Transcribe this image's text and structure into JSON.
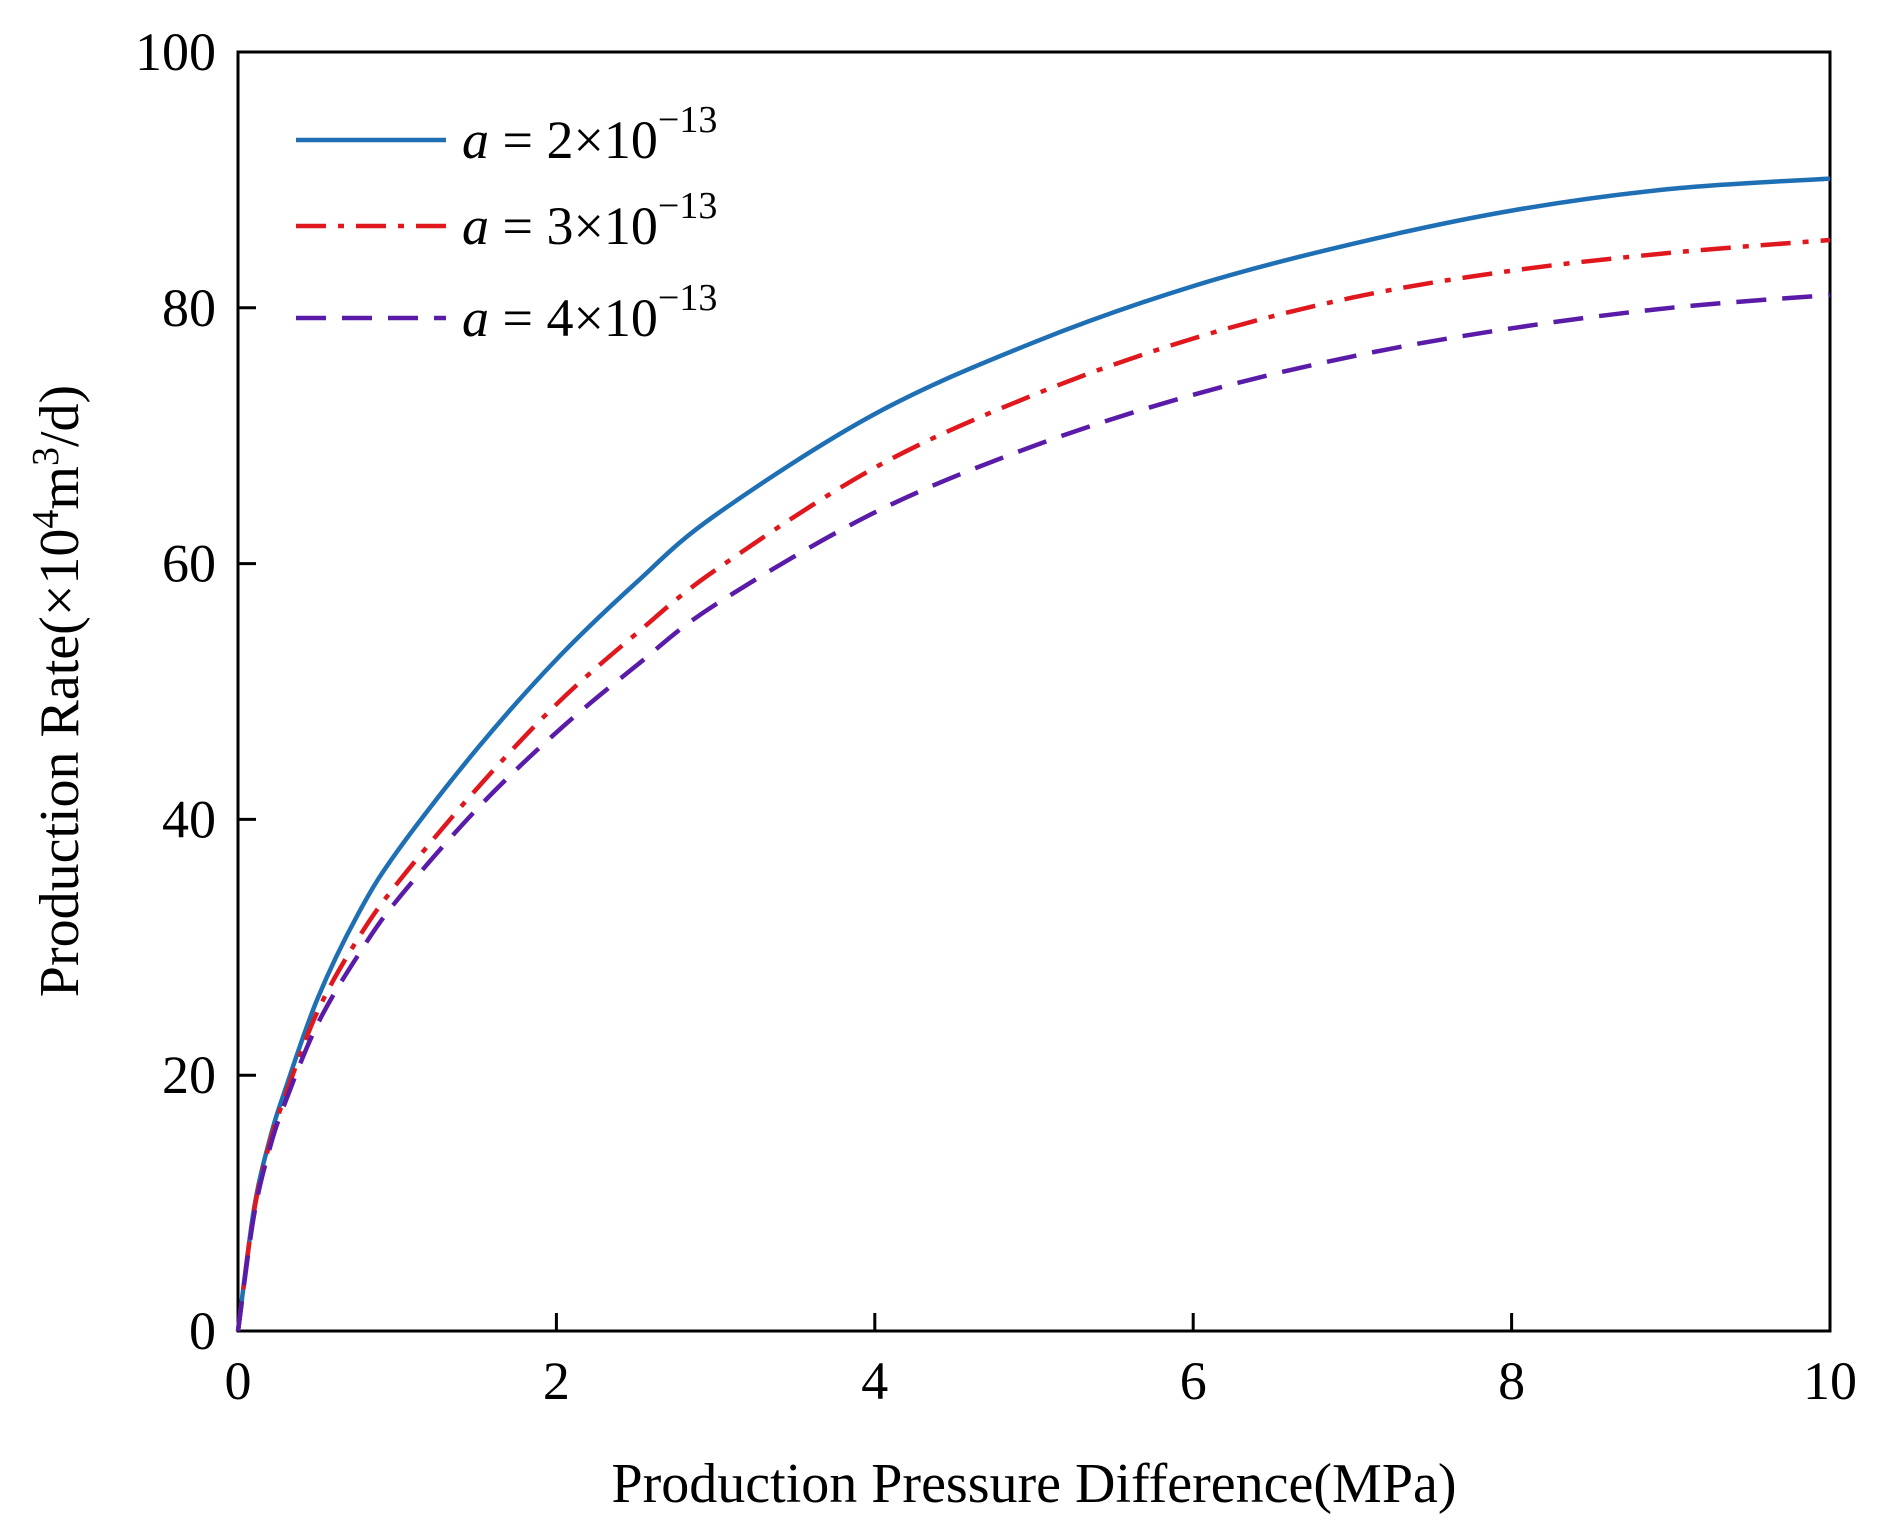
{
  "chart_data": {
    "type": "line",
    "xlabel": "Production Pressure Difference(MPa)",
    "ylabel_prefix": "Production Rate(×10",
    "ylabel_sup1": "4",
    "ylabel_mid": "m",
    "ylabel_sup2": "3",
    "ylabel_suffix": "/d)",
    "xlim": [
      0,
      10
    ],
    "ylim": [
      0,
      100
    ],
    "xticks": [
      0,
      2,
      4,
      6,
      8,
      10
    ],
    "yticks": [
      0,
      20,
      40,
      60,
      80,
      100
    ],
    "grid": false,
    "legend_position": "top-left",
    "series": [
      {
        "name": "a = 2×10^−13",
        "legend_var": "a",
        "legend_eq": " = 2×10",
        "legend_exp": "−13",
        "color": "#1f6fb5",
        "dash": "solid",
        "x": [
          0,
          0.1,
          0.2,
          0.3,
          0.5,
          0.75,
          1,
          1.5,
          2,
          2.5,
          3,
          4,
          5,
          6,
          7,
          8,
          9,
          10
        ],
        "y": [
          0,
          9.5,
          15,
          19,
          26,
          32.5,
          37.5,
          45.5,
          52.5,
          58.5,
          63.8,
          71.7,
          77.3,
          81.7,
          85.0,
          87.6,
          89.3,
          90.1
        ]
      },
      {
        "name": "a = 3×10^−13",
        "legend_var": "a",
        "legend_eq": " = 3×10",
        "legend_exp": "−13",
        "color": "#e0181e",
        "dash": "dashdot",
        "x": [
          0,
          0.1,
          0.2,
          0.3,
          0.5,
          0.75,
          1,
          1.5,
          2,
          2.5,
          3,
          4,
          5,
          6,
          7,
          8,
          9,
          10
        ],
        "y": [
          0,
          9.3,
          14.7,
          18.5,
          25,
          30.6,
          35,
          42.4,
          49,
          54.5,
          59.5,
          67.5,
          73.2,
          77.6,
          80.8,
          82.9,
          84.3,
          85.3
        ]
      },
      {
        "name": "a = 4×10^−13",
        "legend_var": "a",
        "legend_eq": " = 4×10",
        "legend_exp": "−13",
        "color": "#5a1ba8",
        "dash": "dashed",
        "x": [
          0,
          0.1,
          0.2,
          0.3,
          0.5,
          0.75,
          1,
          1.5,
          2,
          2.5,
          3,
          4,
          5,
          6,
          7,
          8,
          9,
          10
        ],
        "y": [
          0,
          9,
          14.3,
          18,
          24,
          29.3,
          33.7,
          40.8,
          46.8,
          52,
          56.8,
          64,
          69.2,
          73.2,
          76.2,
          78.4,
          80,
          81
        ]
      }
    ]
  }
}
